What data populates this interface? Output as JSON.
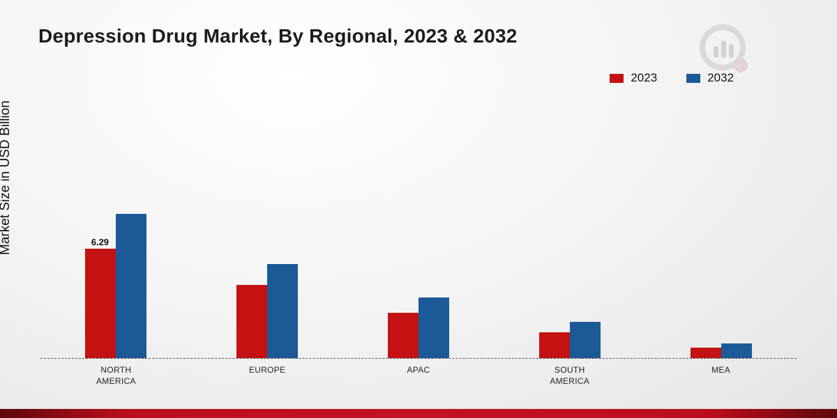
{
  "header": {
    "title": "Depression Drug Market, By Regional, 2023 & 2032",
    "logo_icon": "bar-chart-magnifier-logo"
  },
  "colors": {
    "series_2023": "#c41212",
    "series_2032": "#1b5a96",
    "footer_strip": "#c31322",
    "baseline": "#555555"
  },
  "chart_data": {
    "type": "bar",
    "title": "Depression Drug Market, By Regional, 2023 & 2032",
    "xlabel": "",
    "ylabel": "Market Size in USD Billion",
    "categories": [
      "NORTH AMERICA",
      "EUROPE",
      "APAC",
      "SOUTH AMERICA",
      "MEA"
    ],
    "series": [
      {
        "name": "2023",
        "color": "#c41212",
        "values": [
          6.29,
          4.2,
          2.6,
          1.5,
          0.6
        ]
      },
      {
        "name": "2032",
        "color": "#1b5a96",
        "values": [
          8.3,
          5.4,
          3.5,
          2.1,
          0.85
        ]
      }
    ],
    "annotations": [
      {
        "series": "2023",
        "category": "NORTH AMERICA",
        "text": "6.29"
      }
    ],
    "ylim": [
      0,
      9
    ],
    "grid": false,
    "baseline_style": "dashed",
    "legend_position": "top-right"
  }
}
